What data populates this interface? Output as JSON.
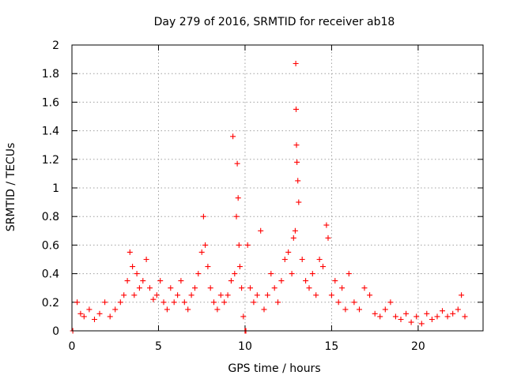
{
  "chart_data": {
    "type": "scatter",
    "title": "Day 279 of 2016, SRMTID for receiver ab18",
    "xlabel": "GPS time / hours",
    "ylabel": "SRMTID / TECUs",
    "xlim": [
      0,
      23.75
    ],
    "ylim": [
      0,
      2
    ],
    "x_ticks": [
      0,
      5,
      10,
      15,
      20
    ],
    "x_tick_labels": [
      "0",
      "5",
      "10",
      "15",
      "20"
    ],
    "y_ticks": [
      0,
      0.2,
      0.4,
      0.6,
      0.8,
      1,
      1.2,
      1.4,
      1.6,
      1.8,
      2
    ],
    "y_tick_labels": [
      "0",
      "0.2",
      "0.4",
      "0.6",
      "0.8",
      "1",
      "1.2",
      "1.4",
      "1.6",
      "1.8",
      "2"
    ],
    "grid": true,
    "marker": "+",
    "color": "#ff0000",
    "series": [
      {
        "name": "SRMTID",
        "x": [
          0.05,
          0.3,
          0.5,
          0.7,
          1.0,
          1.3,
          1.6,
          1.9,
          2.2,
          2.5,
          2.8,
          3.0,
          3.2,
          3.35,
          3.5,
          3.6,
          3.75,
          3.9,
          4.1,
          4.3,
          4.5,
          4.7,
          4.9,
          5.1,
          5.3,
          5.5,
          5.7,
          5.9,
          6.1,
          6.3,
          6.5,
          6.7,
          6.9,
          7.1,
          7.3,
          7.5,
          7.6,
          7.7,
          7.85,
          8.0,
          8.2,
          8.4,
          8.6,
          8.8,
          9.0,
          9.2,
          9.3,
          9.4,
          9.5,
          9.55,
          9.6,
          9.65,
          9.7,
          9.8,
          9.9,
          10.0,
          10.05,
          10.15,
          10.3,
          10.5,
          10.7,
          10.9,
          11.1,
          11.3,
          11.5,
          11.7,
          11.9,
          12.1,
          12.3,
          12.5,
          12.7,
          12.8,
          12.9,
          12.93,
          12.95,
          12.97,
          13.0,
          13.05,
          13.1,
          13.3,
          13.5,
          13.7,
          13.9,
          14.1,
          14.3,
          14.5,
          14.7,
          14.8,
          15.0,
          15.2,
          15.4,
          15.6,
          15.8,
          16.0,
          16.3,
          16.6,
          16.9,
          17.2,
          17.5,
          17.8,
          18.1,
          18.4,
          18.7,
          19.0,
          19.3,
          19.6,
          19.9,
          20.2,
          20.5,
          20.8,
          21.1,
          21.4,
          21.7,
          22.0,
          22.3,
          22.5,
          22.7
        ],
        "y": [
          0.0,
          0.2,
          0.12,
          0.1,
          0.15,
          0.08,
          0.12,
          0.2,
          0.1,
          0.15,
          0.2,
          0.25,
          0.35,
          0.55,
          0.45,
          0.25,
          0.4,
          0.3,
          0.35,
          0.5,
          0.3,
          0.22,
          0.25,
          0.35,
          0.2,
          0.15,
          0.3,
          0.2,
          0.25,
          0.35,
          0.2,
          0.15,
          0.25,
          0.3,
          0.4,
          0.55,
          0.8,
          0.6,
          0.45,
          0.3,
          0.2,
          0.15,
          0.25,
          0.2,
          0.25,
          0.35,
          1.36,
          0.4,
          0.8,
          1.17,
          0.93,
          0.6,
          0.45,
          0.3,
          0.1,
          0.0,
          0.0,
          0.6,
          0.3,
          0.2,
          0.25,
          0.7,
          0.15,
          0.25,
          0.4,
          0.3,
          0.2,
          0.35,
          0.5,
          0.55,
          0.4,
          0.65,
          0.7,
          1.87,
          1.55,
          1.3,
          1.18,
          1.05,
          0.9,
          0.5,
          0.35,
          0.3,
          0.4,
          0.25,
          0.5,
          0.45,
          0.74,
          0.65,
          0.25,
          0.35,
          0.2,
          0.3,
          0.15,
          0.4,
          0.2,
          0.15,
          0.3,
          0.25,
          0.12,
          0.1,
          0.15,
          0.2,
          0.1,
          0.08,
          0.12,
          0.06,
          0.1,
          0.05,
          0.12,
          0.08,
          0.1,
          0.14,
          0.1,
          0.12,
          0.15,
          0.25,
          0.1
        ]
      }
    ]
  }
}
